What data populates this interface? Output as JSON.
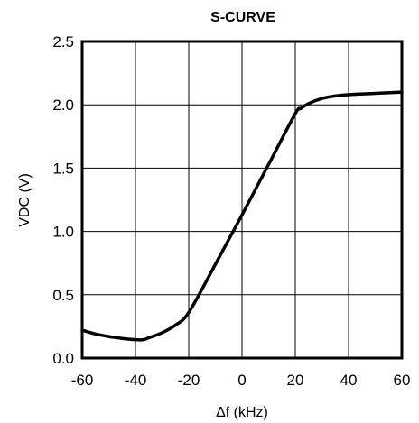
{
  "chart_data": {
    "type": "line",
    "title": "S-CURVE",
    "xlabel": "Δf (kHz)",
    "ylabel": "VDC (V)",
    "xlim": [
      -60,
      60
    ],
    "ylim": [
      0,
      2.5
    ],
    "x_ticks": [
      "-60",
      "-40",
      "-20",
      "0",
      "20",
      "40",
      "60"
    ],
    "y_ticks": [
      "0.0",
      "0.5",
      "1.0",
      "1.5",
      "2.0",
      "2.5"
    ],
    "grid": true,
    "series": [
      {
        "x": [
          -60,
          -55,
          -50,
          -45,
          -40,
          -37,
          -35,
          -30,
          -25,
          -20,
          -10,
          0,
          10,
          20,
          22,
          25,
          30,
          35,
          40,
          50,
          60
        ],
        "y": [
          0.22,
          0.19,
          0.17,
          0.155,
          0.145,
          0.145,
          0.16,
          0.2,
          0.26,
          0.36,
          0.74,
          1.13,
          1.53,
          1.93,
          1.97,
          2.01,
          2.05,
          2.07,
          2.08,
          2.09,
          2.1
        ]
      }
    ]
  }
}
